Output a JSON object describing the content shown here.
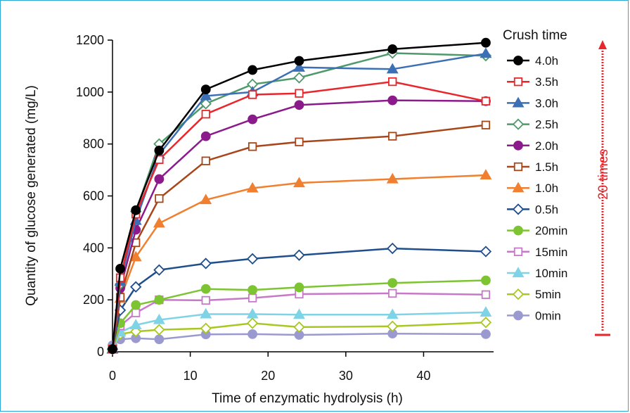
{
  "chart_data": {
    "type": "line",
    "xlabel": "Time of enzymatic hydrolysis (h)",
    "ylabel": "Quantity of glucose generated (mg/L)",
    "xlim": [
      0,
      49
    ],
    "ylim": [
      0,
      1200
    ],
    "xticks": [
      0,
      10,
      20,
      30,
      40
    ],
    "yticks": [
      0,
      200,
      400,
      600,
      800,
      1000,
      1200
    ],
    "grid": false,
    "legend_title": "Crush time",
    "legend_position": "right",
    "annotation": "20 times",
    "annotation_color": "#e8262b",
    "x": [
      0,
      1,
      3,
      6,
      12,
      18,
      24,
      36,
      48
    ],
    "series": [
      {
        "name": "4.0h",
        "color": "#000000",
        "marker": "circle",
        "filled": true,
        "values": [
          10,
          320,
          545,
          775,
          1010,
          1085,
          1120,
          1165,
          1190
        ]
      },
      {
        "name": "3.5h",
        "color": "#e8262b",
        "marker": "square",
        "filled": false,
        "values": [
          10,
          285,
          530,
          740,
          915,
          990,
          995,
          1040,
          965
        ]
      },
      {
        "name": "3.0h",
        "color": "#3b6fb6",
        "marker": "triangle",
        "filled": true,
        "values": [
          10,
          270,
          505,
          760,
          985,
          1000,
          1095,
          1088,
          1148
        ]
      },
      {
        "name": "2.5h",
        "color": "#4e9a6b",
        "marker": "diamond",
        "filled": false,
        "values": [
          10,
          260,
          540,
          800,
          955,
          1030,
          1055,
          1150,
          1140
        ]
      },
      {
        "name": "2.0h",
        "color": "#8b1a8b",
        "marker": "circle",
        "filled": true,
        "values": [
          10,
          245,
          470,
          665,
          830,
          895,
          950,
          968,
          965
        ]
      },
      {
        "name": "1.5h",
        "color": "#a8461a",
        "marker": "square",
        "filled": false,
        "values": [
          10,
          210,
          420,
          590,
          735,
          790,
          808,
          830,
          873
        ]
      },
      {
        "name": "1.0h",
        "color": "#f08030",
        "marker": "triangle",
        "filled": true,
        "values": [
          10,
          205,
          365,
          495,
          585,
          630,
          650,
          665,
          680
        ]
      },
      {
        "name": "0.5h",
        "color": "#1f4e8c",
        "marker": "diamond",
        "filled": false,
        "values": [
          10,
          160,
          250,
          315,
          340,
          358,
          372,
          398,
          386
        ]
      },
      {
        "name": "20min",
        "color": "#7cc431",
        "marker": "circle",
        "filled": true,
        "values": [
          10,
          110,
          180,
          200,
          242,
          238,
          248,
          265,
          275
        ]
      },
      {
        "name": "15min",
        "color": "#c878c8",
        "marker": "square",
        "filled": false,
        "values": [
          10,
          100,
          150,
          200,
          198,
          207,
          222,
          225,
          220
        ]
      },
      {
        "name": "10min",
        "color": "#7fd3e6",
        "marker": "triangle",
        "filled": true,
        "values": [
          10,
          75,
          103,
          123,
          145,
          145,
          143,
          143,
          152
        ]
      },
      {
        "name": "5min",
        "color": "#a8c820",
        "marker": "diamond",
        "filled": false,
        "values": [
          10,
          68,
          78,
          85,
          90,
          110,
          95,
          98,
          113
        ]
      },
      {
        "name": "0min",
        "color": "#9a9ad0",
        "marker": "circle",
        "filled": true,
        "values": [
          25,
          48,
          52,
          48,
          67,
          68,
          65,
          70,
          68
        ]
      }
    ]
  }
}
